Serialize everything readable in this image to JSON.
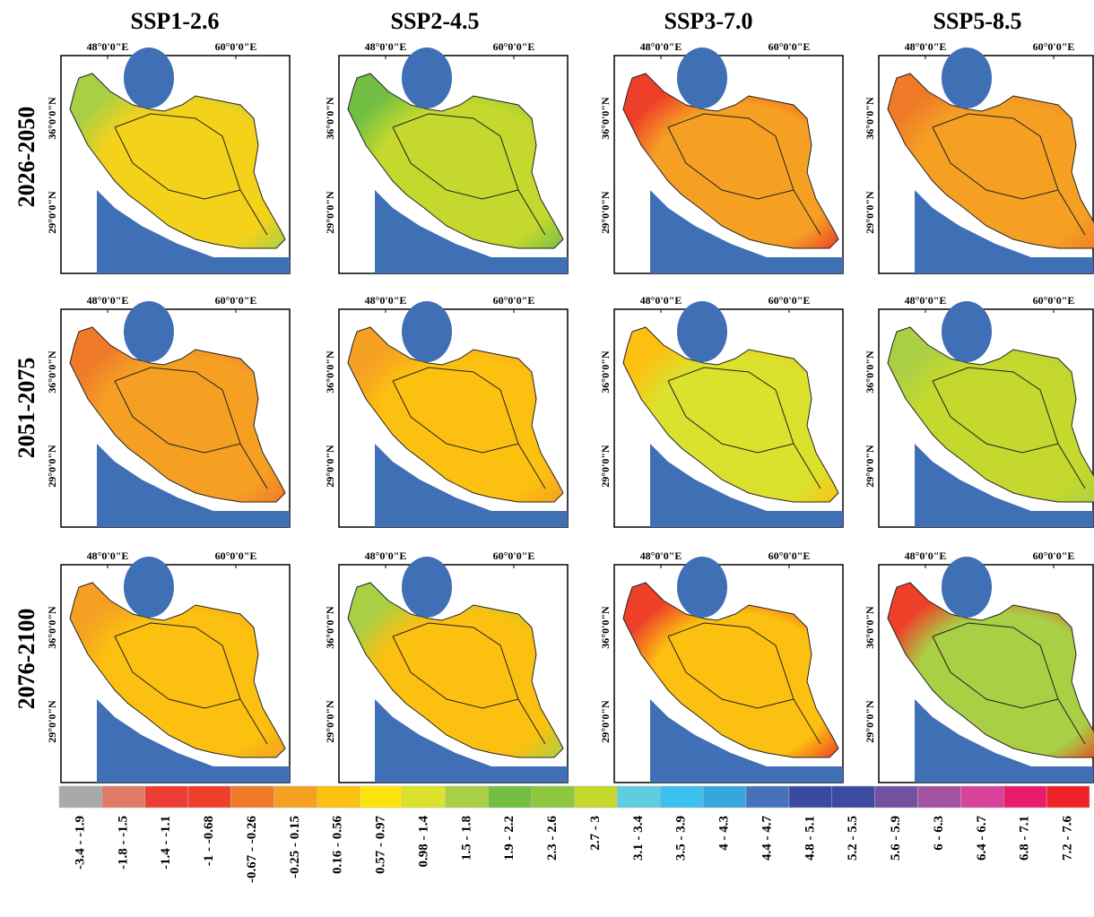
{
  "columns": [
    "SSP1-2.6",
    "SSP2-4.5",
    "SSP3-7.0",
    "SSP5-8.5"
  ],
  "rows": [
    "2026-2050",
    "2051-2075",
    "2076-2100"
  ],
  "axis_labels": {
    "lon": [
      "48°0'0\"E",
      "60°0'0\"E"
    ],
    "lat": [
      "36°0'0\"N",
      "29°0'0\"N"
    ]
  },
  "legend": [
    {
      "label": "-3.4 - -1.9",
      "color": "#a9a9a9"
    },
    {
      "label": "-1.8 - -1.5",
      "color": "#e07b66"
    },
    {
      "label": "-1.4 - -1.1",
      "color": "#ee3d33"
    },
    {
      "label": "-1 - -0.68",
      "color": "#ee4028"
    },
    {
      "label": "-0.67 - -0.26",
      "color": "#f07a28"
    },
    {
      "label": "-0.25 - 0.15",
      "color": "#f5a023"
    },
    {
      "label": "0.16 - 0.56",
      "color": "#fcc010"
    },
    {
      "label": "0.57 - 0.97",
      "color": "#fde30e"
    },
    {
      "label": "0.98 - 1.4",
      "color": "#dbe22e"
    },
    {
      "label": "1.5 - 1.8",
      "color": "#a9cf45"
    },
    {
      "label": "1.9 - 2.2",
      "color": "#72bf44"
    },
    {
      "label": "2.3 - 2.6",
      "color": "#8dc63f"
    },
    {
      "label": "2.7 - 3",
      "color": "#c4d82e"
    },
    {
      "label": "3.1 - 3.4",
      "color": "#5fcde0"
    },
    {
      "label": "3.5 - 3.9",
      "color": "#3cc0ee"
    },
    {
      "label": "4 - 4.3",
      "color": "#36a6df"
    },
    {
      "label": "4.4 - 4.7",
      "color": "#4573bb"
    },
    {
      "label": "4.8 - 5.1",
      "color": "#3a4aa0"
    },
    {
      "label": "5.2 - 5.5",
      "color": "#3c4aa0"
    },
    {
      "label": "5.6 - 5.9",
      "color": "#7251a2"
    },
    {
      "label": "6 - 6.3",
      "color": "#a452a1"
    },
    {
      "label": "6.4 - 6.7",
      "color": "#d7439a"
    },
    {
      "label": "6.8 - 7.1",
      "color": "#e81c6b"
    },
    {
      "label": "7.2 - 7.6",
      "color": "#ec2227"
    }
  ]
}
